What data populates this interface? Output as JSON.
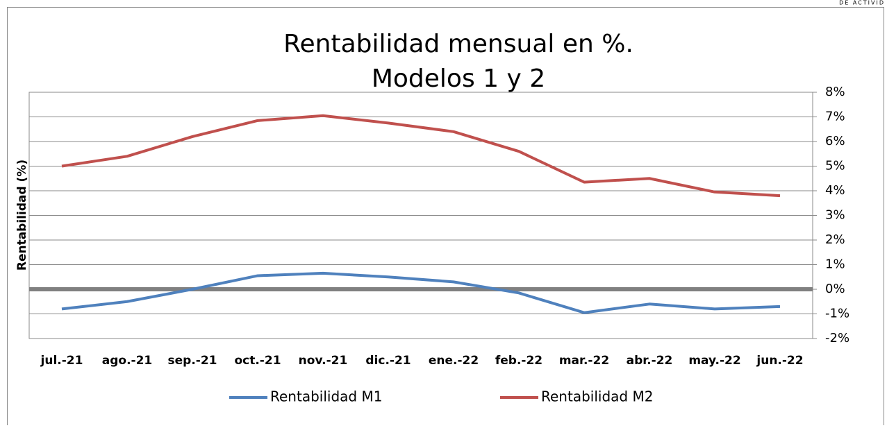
{
  "corner_text": "DE ACTIVID",
  "chart_data": {
    "type": "line",
    "title": [
      "Rentabilidad mensual en %.",
      "Modelos 1 y 2"
    ],
    "y_label": "Rentabilidad (%)",
    "categories": [
      "jul.-21",
      "ago.-21",
      "sep.-21",
      "oct.-21",
      "nov.-21",
      "dic.-21",
      "ene.-22",
      "feb.-22",
      "mar.-22",
      "abr.-22",
      "may.-22",
      "jun.-22"
    ],
    "series": [
      {
        "name": "Rentabilidad M1",
        "color": "#4f81bd",
        "values": [
          -0.8,
          -0.5,
          0.0,
          0.55,
          0.65,
          0.5,
          0.3,
          -0.15,
          -0.95,
          -0.6,
          -0.8,
          -0.7
        ]
      },
      {
        "name": "Rentabilidad M2",
        "color": "#c0504d",
        "values": [
          5.0,
          5.4,
          6.2,
          6.85,
          7.05,
          6.75,
          6.4,
          5.6,
          4.35,
          4.5,
          3.95,
          3.8
        ]
      }
    ],
    "ylim": [
      -2,
      8
    ],
    "yticks": [
      {
        "value": -2,
        "label": "-2%"
      },
      {
        "value": -1,
        "label": "-1%"
      },
      {
        "value": 0,
        "label": "0%"
      },
      {
        "value": 1,
        "label": "1%"
      },
      {
        "value": 2,
        "label": "2%"
      },
      {
        "value": 3,
        "label": "3%"
      },
      {
        "value": 4,
        "label": "4%"
      },
      {
        "value": 5,
        "label": "5%"
      },
      {
        "value": 6,
        "label": "6%"
      },
      {
        "value": 7,
        "label": "7%"
      },
      {
        "value": 8,
        "label": "8%"
      }
    ],
    "grid": true,
    "y_axis_side": "right",
    "legend": "bottom"
  }
}
